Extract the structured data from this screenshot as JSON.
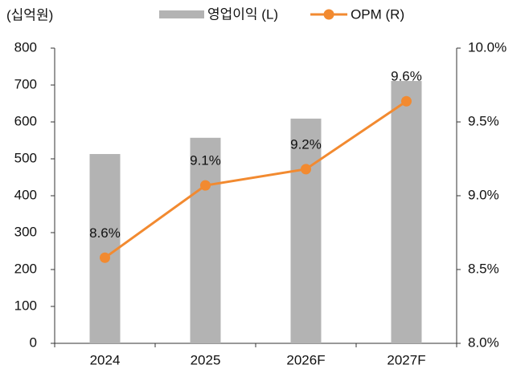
{
  "chart_data": {
    "type": "combo",
    "y_label": "(십억원)",
    "categories": [
      "2024",
      "2025",
      "2026F",
      "2027F"
    ],
    "series": [
      {
        "name": "영업이익 (L)",
        "type": "bar",
        "color": "#b3b3b3",
        "values": [
          513,
          557,
          609,
          711
        ]
      },
      {
        "name": "OPM (R)",
        "type": "line",
        "axis": "y2",
        "color": "#f28a30",
        "values": [
          8.58,
          9.07,
          9.18,
          9.64
        ],
        "value_labels": [
          "8.6%",
          "9.1%",
          "9.2%",
          "9.6%"
        ]
      }
    ],
    "ylim": [
      0,
      800
    ],
    "yticks": [
      0,
      100,
      200,
      300,
      400,
      500,
      600,
      700,
      800
    ],
    "y2lim": [
      8.0,
      10.0
    ],
    "y2ticks": [
      {
        "value": 8.0,
        "label": "8.0%"
      },
      {
        "value": 8.5,
        "label": "8.5%"
      },
      {
        "value": 9.0,
        "label": "9.0%"
      },
      {
        "value": 9.5,
        "label": "9.5%"
      },
      {
        "value": 10.0,
        "label": "10.0%"
      }
    ],
    "grid": false
  }
}
